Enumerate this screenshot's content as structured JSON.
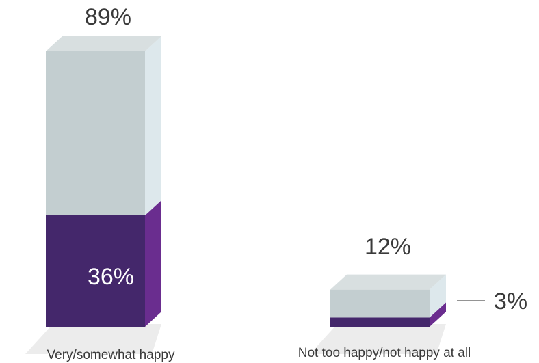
{
  "chart_data": {
    "type": "bar",
    "stacked": true,
    "style": "3d",
    "categories": [
      "Very/somewhat happy",
      "Not too happy/not happy at all"
    ],
    "totals": [
      89,
      12
    ],
    "total_labels": [
      "89%",
      "12%"
    ],
    "series": [
      {
        "values": [
          36,
          3
        ],
        "color": "#44276b",
        "labels": [
          "36%",
          "3%"
        ]
      },
      {
        "values": [
          53,
          9
        ],
        "color": "#c3ced0"
      }
    ],
    "ylim": [
      0,
      89
    ],
    "grid": false,
    "legend": "none"
  }
}
